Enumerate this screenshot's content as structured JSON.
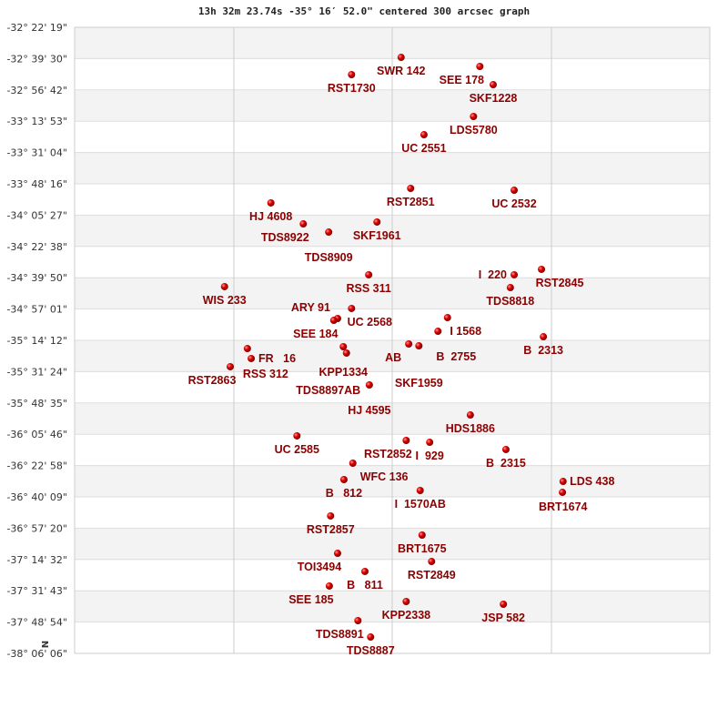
{
  "title": "13h 32m 23.74s -35° 16′ 52.0\" centered 300 arcsec graph",
  "compass_label": "N",
  "colors": {
    "point": "#dd0000",
    "label": "#8b0000",
    "band": "#f3f3f3",
    "grid": "#cccccc"
  },
  "chart_data": {
    "type": "scatter",
    "title": "13h 32m 23.74s -35° 16′ 52.0\" centered 300 arcsec graph",
    "xlabel": "",
    "ylabel": "",
    "xlim": [
      0,
      100
    ],
    "ylim": [
      -38.1017,
      -32.3719
    ],
    "grid": true,
    "y_tick_labels": [
      "-32° 22' 19\"",
      "-32° 39' 30\"",
      "-32° 56' 42\"",
      "-33° 13' 53\"",
      "-33° 31' 04\"",
      "-33° 48' 16\"",
      "-34° 05' 27\"",
      "-34° 22' 38\"",
      "-34° 39' 50\"",
      "-34° 57' 01\"",
      "-35° 14' 12\"",
      "-35° 31' 24\"",
      "-35° 48' 35\"",
      "-36° 05' 46\"",
      "-36° 22' 58\"",
      "-36° 40' 09\"",
      "-36° 57' 20\"",
      "-37° 14' 32\"",
      "-37° 31' 43\"",
      "-37° 48' 54\"",
      "-38° 06' 06\""
    ],
    "points": [
      {
        "label": "SWR 142",
        "x": 51.4,
        "y": -32.647
      },
      {
        "label": "SEE 178",
        "x": 63.8,
        "y": -32.73
      },
      {
        "label": "RST1730",
        "x": 43.6,
        "y": -32.805
      },
      {
        "label": "SKF1228",
        "x": 65.9,
        "y": -32.897
      },
      {
        "label": "LDS5780",
        "x": 62.8,
        "y": -33.188
      },
      {
        "label": "UC 2551",
        "x": 55.0,
        "y": -33.355
      },
      {
        "label": "RST2851",
        "x": 52.9,
        "y": -33.846
      },
      {
        "label": "UC 2532",
        "x": 69.2,
        "y": -33.863
      },
      {
        "label": "HJ 4608",
        "x": 30.9,
        "y": -33.979
      },
      {
        "label": "TDS8922",
        "x": 36.0,
        "y": -34.171
      },
      {
        "label": "SKF1961",
        "x": 47.6,
        "y": -34.154
      },
      {
        "label": "TDS8909",
        "x": 40.0,
        "y": -34.246
      },
      {
        "label": "RSS 311",
        "x": 46.3,
        "y": -34.637
      },
      {
        "label": "RST2845",
        "x": 73.5,
        "y": -34.587
      },
      {
        "label": "I  220",
        "x": 69.2,
        "y": -34.637
      },
      {
        "label": "TDS8818",
        "x": 68.6,
        "y": -34.754
      },
      {
        "label": "WIS 233",
        "x": 23.6,
        "y": -34.745
      },
      {
        "label": "UC 2568",
        "x": 43.6,
        "y": -34.945
      },
      {
        "label": "ARY 91",
        "x": 41.4,
        "y": -35.037
      },
      {
        "label": "SEE 184",
        "x": 40.8,
        "y": -35.054
      },
      {
        "label": "I 1568",
        "x": 58.7,
        "y": -35.029
      },
      {
        "label": "B  2755",
        "x": 57.2,
        "y": -35.154
      },
      {
        "label": "AB",
        "x": 52.6,
        "y": -35.27
      },
      {
        "label": "SKF1959",
        "x": 54.2,
        "y": -35.287
      },
      {
        "label": "B  2313",
        "x": 73.8,
        "y": -35.204
      },
      {
        "label": "KPP1334",
        "x": 42.3,
        "y": -35.295
      },
      {
        "label": "TDS8897AB",
        "x": 42.8,
        "y": -35.353
      },
      {
        "label": "RSS 312",
        "x": 27.2,
        "y": -35.312
      },
      {
        "label": "FR   16",
        "x": 27.8,
        "y": -35.403
      },
      {
        "label": "RST2863",
        "x": 24.5,
        "y": -35.478
      },
      {
        "label": "HJ 4595",
        "x": 46.4,
        "y": -35.645
      },
      {
        "label": "HDS1886",
        "x": 62.3,
        "y": -35.92
      },
      {
        "label": "UC 2585",
        "x": 35.0,
        "y": -36.111
      },
      {
        "label": "RST2852",
        "x": 52.2,
        "y": -36.153
      },
      {
        "label": "I  929",
        "x": 55.9,
        "y": -36.17
      },
      {
        "label": "B  2315",
        "x": 67.9,
        "y": -36.236
      },
      {
        "label": "WFC 136",
        "x": 43.8,
        "y": -36.361
      },
      {
        "label": "B   812",
        "x": 42.4,
        "y": -36.511
      },
      {
        "label": "I  1570AB",
        "x": 54.4,
        "y": -36.611
      },
      {
        "label": "BRT1674",
        "x": 76.9,
        "y": -36.528
      },
      {
        "label": "LDS 438",
        "x": 76.8,
        "y": -36.628
      },
      {
        "label": "RST2857",
        "x": 40.3,
        "y": -36.844
      },
      {
        "label": "BRT1675",
        "x": 54.7,
        "y": -37.019
      },
      {
        "label": "TOI3494",
        "x": 41.4,
        "y": -37.186
      },
      {
        "label": "RST2849",
        "x": 56.2,
        "y": -37.261
      },
      {
        "label": "B   811",
        "x": 45.7,
        "y": -37.352
      },
      {
        "label": "SEE 185",
        "x": 40.1,
        "y": -37.485
      },
      {
        "label": "KPP2338",
        "x": 52.2,
        "y": -37.627
      },
      {
        "label": "JSP 582",
        "x": 67.5,
        "y": -37.652
      },
      {
        "label": "TDS8891",
        "x": 44.6,
        "y": -37.802
      },
      {
        "label": "TDS8887",
        "x": 46.6,
        "y": -37.952
      }
    ]
  }
}
